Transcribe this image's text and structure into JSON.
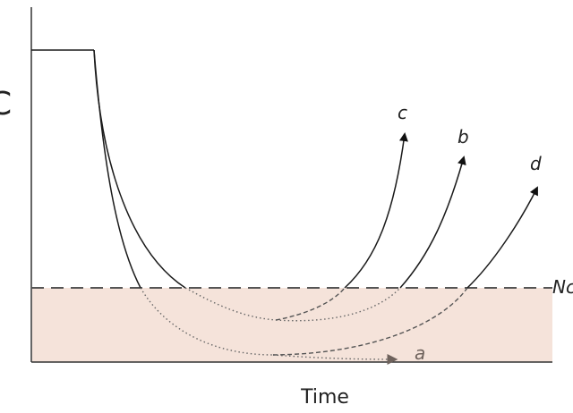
{
  "diagram": {
    "y_axis_label": "C",
    "x_axis_label": "Time",
    "threshold_label": "Nc",
    "curve_labels": {
      "a": "a",
      "b": "b",
      "c": "c",
      "d": "d"
    },
    "colors": {
      "line": "#1a1a1a",
      "dashed": "#555555",
      "shaded_region": "#f5e3da",
      "arrow_a": "#6e625c"
    }
  }
}
